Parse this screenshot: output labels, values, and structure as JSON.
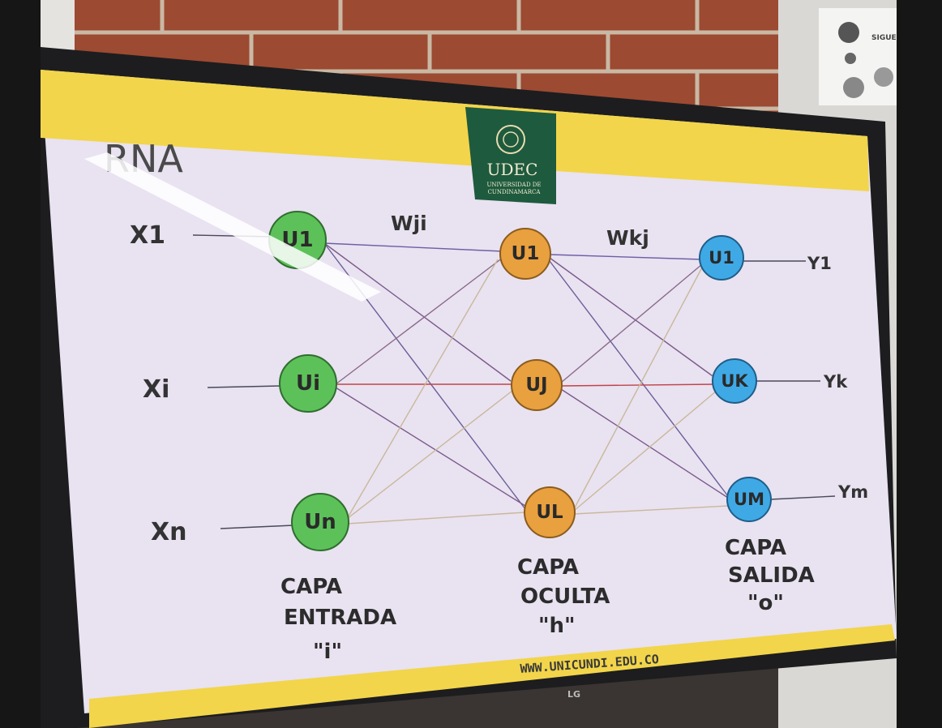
{
  "slide": {
    "title": "RNA",
    "logo_name": "UDEC",
    "logo_sub1": "UNIVERSIDAD DE",
    "logo_sub2": "CUNDINAMARCA",
    "footer_url": "WWW.UNICUNDI.EDU.CO",
    "brand": "LG",
    "colors": {
      "input_node": "#5dc15a",
      "hidden_node": "#e9a03e",
      "output_node": "#3fa9e6",
      "banner": "#f2d54a",
      "slide_bg": "#e9e2f1"
    }
  },
  "diagram": {
    "inputs": [
      "X1",
      "Xi",
      "Xn"
    ],
    "outputs": [
      "Y1",
      "Yk",
      "Ym"
    ],
    "input_nodes": [
      "U1",
      "Ui",
      "Un"
    ],
    "hidden_nodes": [
      "U1",
      "UJ",
      "UL"
    ],
    "output_nodes": [
      "U1",
      "UK",
      "UM"
    ],
    "weight_ih": "Wji",
    "weight_ho": "Wkj",
    "layer_input": [
      "CAPA",
      "ENTRADA",
      "\"i\""
    ],
    "layer_hidden": [
      "CAPA",
      "OCULTA",
      "\"h\""
    ],
    "layer_output": [
      "CAPA",
      "SALIDA",
      "\"o\""
    ]
  },
  "poster": {
    "text": "SIGUE"
  }
}
